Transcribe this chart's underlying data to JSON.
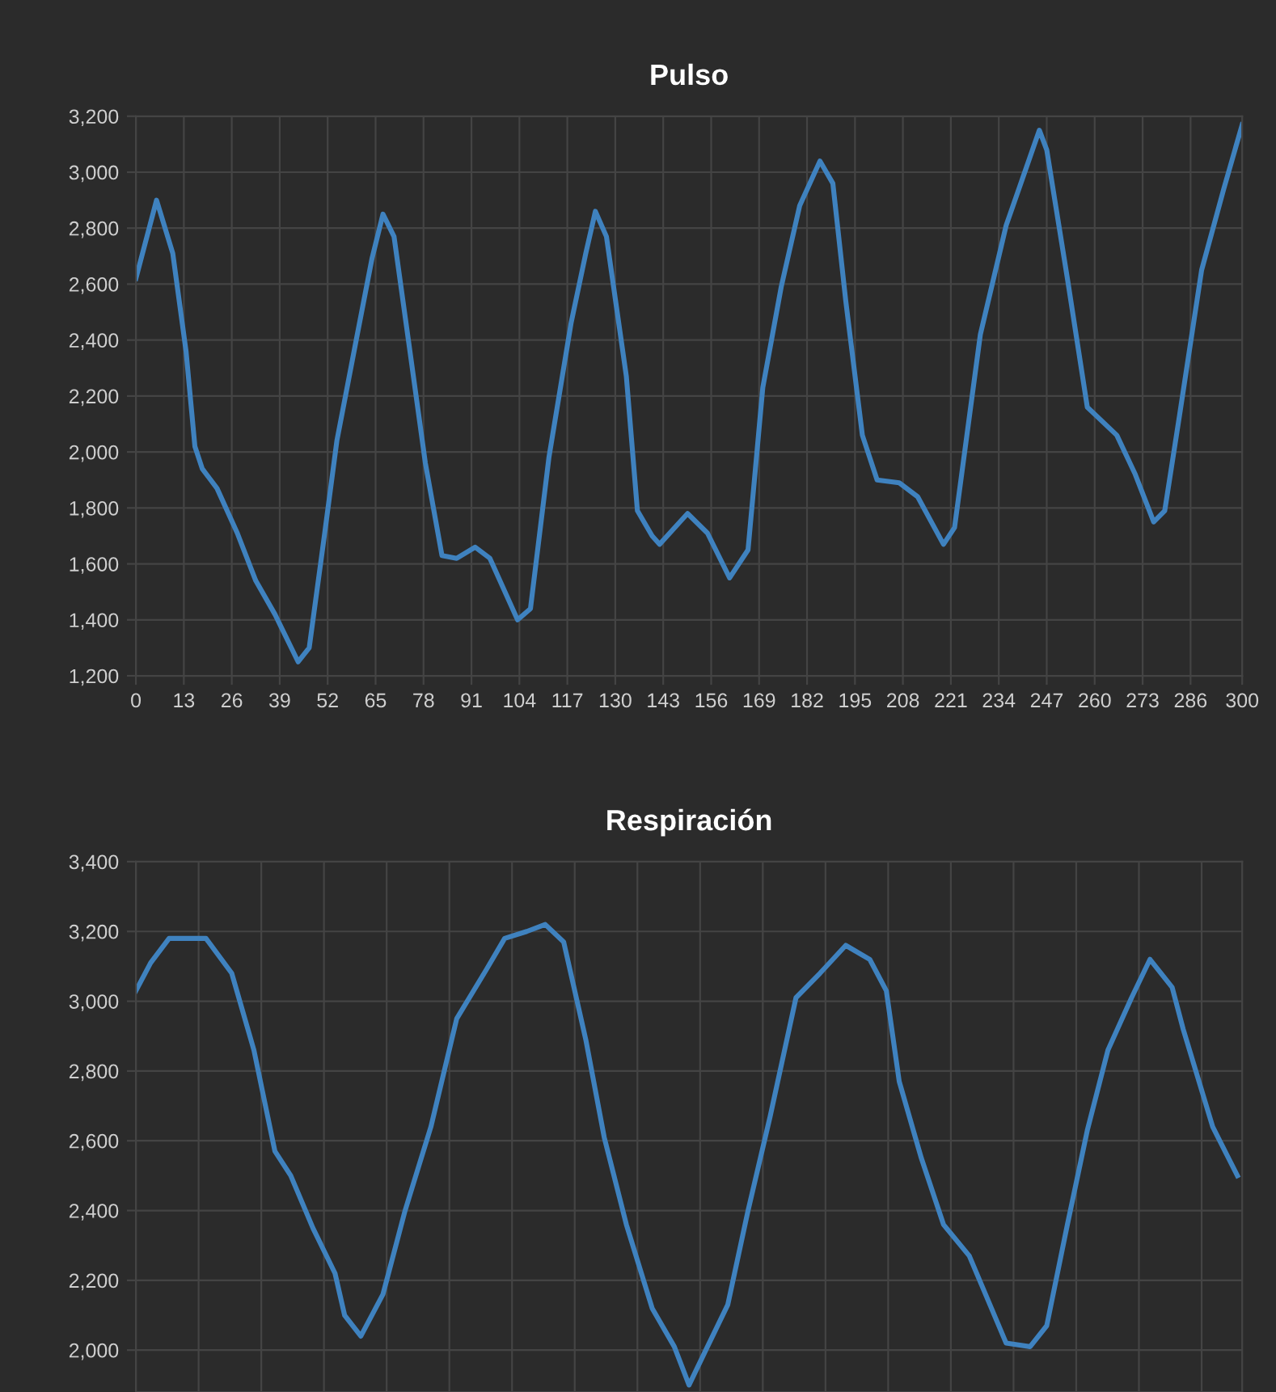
{
  "chart_data": [
    {
      "type": "line",
      "title": "Pulso",
      "xlim": [
        0,
        300
      ],
      "ylim": [
        1200,
        3200
      ],
      "xticks": [
        0,
        13,
        26,
        39,
        52,
        65,
        78,
        91,
        104,
        117,
        130,
        143,
        156,
        169,
        182,
        195,
        208,
        221,
        234,
        247,
        260,
        273,
        286,
        300
      ],
      "yticks": [
        {
          "value": 1200,
          "label": "1,200"
        },
        {
          "value": 1400,
          "label": "1,400"
        },
        {
          "value": 1600,
          "label": "1,600"
        },
        {
          "value": 1800,
          "label": "1,800"
        },
        {
          "value": 2000,
          "label": "2,000"
        },
        {
          "value": 2200,
          "label": "2,200"
        },
        {
          "value": 2400,
          "label": "2,400"
        },
        {
          "value": 2600,
          "label": "2,600"
        },
        {
          "value": 2800,
          "label": "2,800"
        },
        {
          "value": 3000,
          "label": "3,000"
        },
        {
          "value": 3200,
          "label": "3,200"
        }
      ],
      "grid": true,
      "marker": "none",
      "line_style": "solid",
      "series": [
        {
          "color": "#3f82bf",
          "x": [
            0,
            5.6,
            10,
            13.6,
            16,
            18,
            22,
            27.5,
            32.5,
            37.7,
            44,
            47,
            51,
            54.5,
            59.6,
            64,
            67,
            70,
            74,
            78.5,
            83,
            87,
            92,
            96,
            103.5,
            107,
            112,
            118,
            122,
            124.6,
            127.6,
            133,
            136,
            140,
            142,
            149.6,
            155,
            161,
            166,
            170,
            175,
            180,
            185.5,
            189,
            192.5,
            197,
            201,
            207,
            212,
            219,
            222,
            229,
            236,
            245,
            247,
            252.6,
            258,
            266,
            271,
            276,
            279,
            283,
            289,
            295,
            300
          ],
          "values": [
            2620,
            2900,
            2710,
            2360,
            2020,
            1940,
            1870,
            1710,
            1540,
            1420,
            1250,
            1300,
            1690,
            2040,
            2390,
            2690,
            2850,
            2770,
            2390,
            1960,
            1630,
            1620,
            1660,
            1620,
            1400,
            1440,
            1980,
            2460,
            2710,
            2860,
            2770,
            2270,
            1790,
            1700,
            1670,
            1780,
            1710,
            1550,
            1650,
            2230,
            2590,
            2880,
            3040,
            2960,
            2540,
            2060,
            1900,
            1890,
            1840,
            1670,
            1730,
            2420,
            2810,
            3150,
            3080,
            2620,
            2160,
            2060,
            1920,
            1750,
            1790,
            2130,
            2650,
            2940,
            3170
          ]
        }
      ]
    },
    {
      "type": "line",
      "title": "Respiración",
      "xlim": [
        0,
        300
      ],
      "ylim": [
        1880,
        3400
      ],
      "xticks": [
        {
          "value": 0,
          "label": null
        },
        {
          "value": 17,
          "label": null
        },
        {
          "value": 34,
          "label": null
        },
        {
          "value": 51,
          "label": null
        },
        {
          "value": 68,
          "label": null
        },
        {
          "value": 85,
          "label": null
        },
        {
          "value": 102,
          "label": null
        },
        {
          "value": 119,
          "label": null
        },
        {
          "value": 136,
          "label": null
        },
        {
          "value": 153,
          "label": null
        },
        {
          "value": 170,
          "label": null
        },
        {
          "value": 187,
          "label": null
        },
        {
          "value": 204,
          "label": null
        },
        {
          "value": 221,
          "label": null
        },
        {
          "value": 238,
          "label": null
        },
        {
          "value": 255,
          "label": null
        },
        {
          "value": 272,
          "label": null
        },
        {
          "value": 289,
          "label": null
        }
      ],
      "yticks": [
        {
          "value": 2000,
          "label": "2,000"
        },
        {
          "value": 2200,
          "label": "2,200"
        },
        {
          "value": 2400,
          "label": "2,400"
        },
        {
          "value": 2600,
          "label": "2,600"
        },
        {
          "value": 2800,
          "label": "2,800"
        },
        {
          "value": 3000,
          "label": "3,000"
        },
        {
          "value": 3200,
          "label": "3,200"
        },
        {
          "value": 3400,
          "label": "3,400"
        }
      ],
      "tick_labels": "y",
      "grid": true,
      "marker": "none",
      "line_style": "solid",
      "series": [
        {
          "color": "#3f82bf",
          "x": [
            0,
            4,
            9,
            14,
            19,
            26,
            32,
            37.7,
            42,
            48,
            54,
            56.6,
            61,
            67,
            73,
            80,
            87,
            95,
            100,
            106,
            111,
            116,
            122,
            127,
            133,
            140,
            146,
            150,
            155,
            160.5,
            166,
            172,
            179,
            185.5,
            192.5,
            199,
            203.5,
            207,
            213,
            219,
            226,
            232,
            236,
            242.5,
            247,
            252.6,
            258,
            263.6,
            270,
            275,
            281,
            284,
            292,
            298.7
          ],
          "values": [
            3030,
            3110,
            3180,
            3180,
            3180,
            3080,
            2860,
            2570,
            2500,
            2350,
            2220,
            2100,
            2040,
            2160,
            2400,
            2640,
            2950,
            3090,
            3180,
            3200,
            3220,
            3170,
            2890,
            2610,
            2360,
            2120,
            2010,
            1900,
            2010,
            2130,
            2400,
            2670,
            3010,
            3080,
            3160,
            3120,
            3030,
            2770,
            2550,
            2360,
            2270,
            2120,
            2020,
            2010,
            2070,
            2360,
            2630,
            2860,
            3010,
            3120,
            3040,
            2920,
            2640,
            2500
          ]
        }
      ]
    }
  ]
}
